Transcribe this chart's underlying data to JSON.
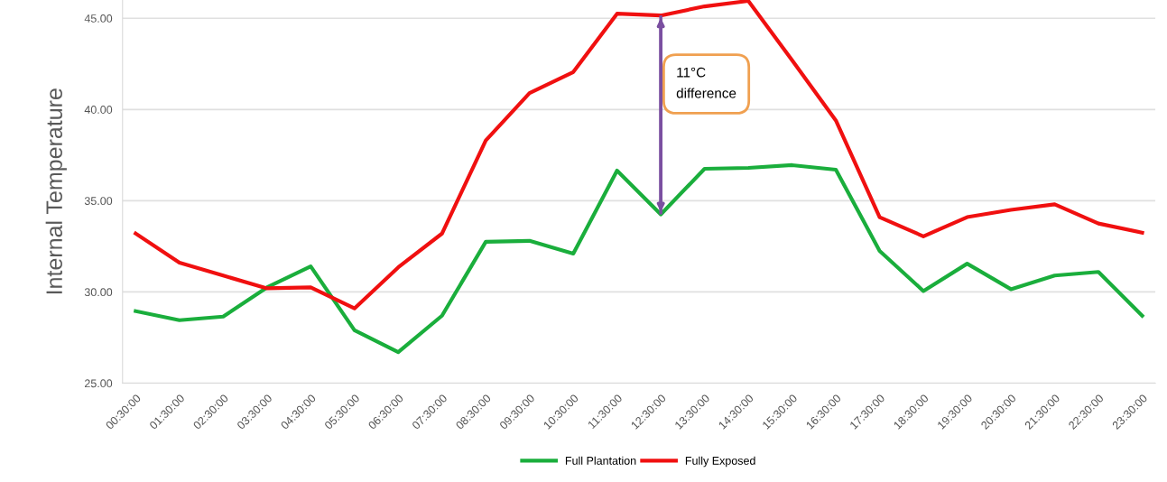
{
  "chart_data": {
    "type": "line",
    "ylabel": "Internal Temperature",
    "categories": [
      "00:30:00",
      "01:30:00",
      "02:30:00",
      "03:30:00",
      "04:30:00",
      "05:30:00",
      "06:30:00",
      "07:30:00",
      "08:30:00",
      "09:30:00",
      "10:30:00",
      "11:30:00",
      "12:30:00",
      "13:30:00",
      "14:30:00",
      "15:30:00",
      "16:30:00",
      "17:30:00",
      "18:30:00",
      "19:30:00",
      "20:30:00",
      "21:30:00",
      "22:30:00",
      "23:30:00"
    ],
    "series": [
      {
        "name": "Full Plantation",
        "color": "#1aae3c",
        "values": [
          28.95,
          28.45,
          28.65,
          30.25,
          31.4,
          27.9,
          26.7,
          28.7,
          32.75,
          32.8,
          32.1,
          36.65,
          34.25,
          36.75,
          36.8,
          36.95,
          36.7,
          32.25,
          30.05,
          31.55,
          30.15,
          30.9,
          31.1,
          28.7
        ]
      },
      {
        "name": "Fully Exposed",
        "color": "#f01010",
        "values": [
          33.2,
          31.6,
          30.9,
          30.2,
          30.25,
          29.1,
          31.35,
          33.2,
          38.3,
          40.9,
          42.05,
          45.25,
          45.15,
          45.65,
          45.95,
          42.7,
          39.4,
          34.1,
          33.05,
          34.1,
          34.5,
          34.8,
          33.75,
          33.25
        ]
      }
    ],
    "ylim": [
      25,
      46
    ],
    "yticks": [
      {
        "value": 25,
        "label": "25.00"
      },
      {
        "value": 30,
        "label": "30.00"
      },
      {
        "value": 35,
        "label": "35.00"
      },
      {
        "value": 40,
        "label": "40.00"
      },
      {
        "value": 45,
        "label": "45.00"
      }
    ],
    "grid": "y",
    "legend": "bottom",
    "marker": "none",
    "line_style": "solid",
    "ref_lines": [
      {
        "axis": "x",
        "value": "12:30:00",
        "label": "11°C\ndifference",
        "color": "#7a4fa0"
      }
    ]
  }
}
